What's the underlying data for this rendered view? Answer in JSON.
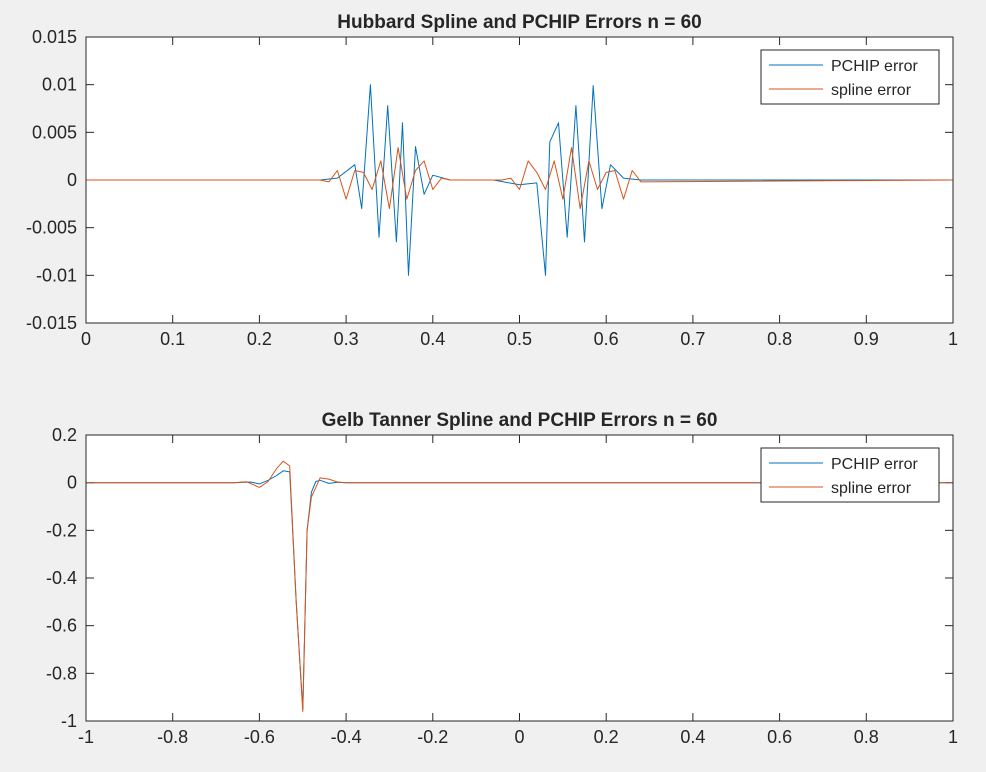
{
  "window": {
    "background": "#f0f0f0"
  },
  "chart_data": [
    {
      "type": "line",
      "title": "Hubbard Spline and PCHIP Errors n = 60",
      "xlabel": "",
      "ylabel": "",
      "xlim": [
        0,
        1
      ],
      "ylim": [
        -0.015,
        0.015
      ],
      "xticks": [
        0,
        0.1,
        0.2,
        0.3,
        0.4,
        0.5,
        0.6,
        0.7,
        0.8,
        0.9,
        1
      ],
      "xtick_labels": [
        "0",
        "0.1",
        "0.2",
        "0.3",
        "0.4",
        "0.5",
        "0.6",
        "0.7",
        "0.8",
        "0.9",
        "1"
      ],
      "yticks": [
        -0.015,
        -0.01,
        -0.005,
        0,
        0.005,
        0.01,
        0.015
      ],
      "ytick_labels": [
        "-0.015",
        "-0.01",
        "-0.005",
        "0",
        "0.005",
        "0.01",
        "0.015"
      ],
      "grid": false,
      "legend": {
        "placement": "top-right",
        "entries": [
          "PCHIP error",
          "spline error"
        ]
      },
      "series": [
        {
          "name": "PCHIP error",
          "color": "#0072BD",
          "x": [
            0,
            0.27,
            0.29,
            0.31,
            0.318,
            0.328,
            0.338,
            0.348,
            0.358,
            0.365,
            0.372,
            0.38,
            0.39,
            0.4,
            0.42,
            0.44,
            0.47,
            0.5,
            0.52,
            0.53,
            0.535,
            0.545,
            0.555,
            0.565,
            0.575,
            0.585,
            0.595,
            0.605,
            0.62,
            0.64,
            1
          ],
          "y": [
            0,
            0,
            0.0002,
            0.0016,
            -0.003,
            0.01,
            -0.006,
            0.0078,
            -0.0065,
            0.006,
            -0.01,
            0.0035,
            -0.0015,
            0.0005,
            0,
            0,
            0,
            -0.0005,
            -0.0003,
            -0.01,
            0.004,
            0.006,
            -0.006,
            0.0078,
            -0.0065,
            0.0099,
            -0.003,
            0.0016,
            0.0002,
            0,
            0
          ]
        },
        {
          "name": "spline error",
          "color": "#D95319",
          "x": [
            0,
            0.27,
            0.28,
            0.29,
            0.3,
            0.31,
            0.32,
            0.33,
            0.34,
            0.35,
            0.36,
            0.37,
            0.38,
            0.39,
            0.4,
            0.41,
            0.42,
            0.45,
            0.48,
            0.49,
            0.5,
            0.51,
            0.52,
            0.53,
            0.54,
            0.55,
            0.56,
            0.57,
            0.58,
            0.59,
            0.6,
            0.61,
            0.62,
            0.63,
            0.64,
            1
          ],
          "y": [
            0,
            0,
            -0.0002,
            0.001,
            -0.002,
            0.001,
            0.0008,
            -0.001,
            0.002,
            -0.003,
            0.0034,
            -0.002,
            0.001,
            0.002,
            -0.001,
            0.0002,
            0,
            0,
            0,
            0.0002,
            -0.001,
            0.002,
            0.0008,
            -0.001,
            0.002,
            -0.002,
            0.0034,
            -0.003,
            0.002,
            -0.001,
            0.0008,
            0.001,
            -0.002,
            0.001,
            -0.0002,
            0
          ]
        }
      ]
    },
    {
      "type": "line",
      "title": "Gelb Tanner Spline and PCHIP Errors n = 60",
      "xlabel": "",
      "ylabel": "",
      "xlim": [
        -1,
        1
      ],
      "ylim": [
        -1,
        0.2
      ],
      "xticks": [
        -1,
        -0.8,
        -0.6,
        -0.4,
        -0.2,
        0,
        0.2,
        0.4,
        0.6,
        0.8,
        1
      ],
      "xtick_labels": [
        "-1",
        "-0.8",
        "-0.6",
        "-0.4",
        "-0.2",
        "0",
        "0.2",
        "0.4",
        "0.6",
        "0.8",
        "1"
      ],
      "yticks": [
        -1,
        -0.8,
        -0.6,
        -0.4,
        -0.2,
        0,
        0.2
      ],
      "ytick_labels": [
        "-1",
        "-0.8",
        "-0.6",
        "-0.4",
        "-0.2",
        "0",
        "0.2"
      ],
      "grid": false,
      "legend": {
        "placement": "top-right",
        "entries": [
          "PCHIP error",
          "spline error"
        ]
      },
      "series": [
        {
          "name": "PCHIP error",
          "color": "#0072BD",
          "x": [
            -1,
            -0.66,
            -0.62,
            -0.6,
            -0.58,
            -0.56,
            -0.545,
            -0.53,
            -0.515,
            -0.5,
            -0.49,
            -0.48,
            -0.47,
            -0.46,
            -0.44,
            -0.42,
            -0.4,
            1
          ],
          "y": [
            0,
            0,
            0.003,
            -0.005,
            0.01,
            0.03,
            0.05,
            0.045,
            -0.5,
            -0.95,
            -0.2,
            -0.04,
            0.005,
            0.01,
            -0.003,
            0.002,
            0,
            0
          ]
        },
        {
          "name": "spline error",
          "color": "#D95319",
          "x": [
            -1,
            -0.66,
            -0.63,
            -0.6,
            -0.58,
            -0.56,
            -0.545,
            -0.53,
            -0.515,
            -0.5,
            -0.49,
            -0.48,
            -0.47,
            -0.46,
            -0.44,
            -0.42,
            -0.4,
            1
          ],
          "y": [
            0,
            0,
            0.004,
            -0.02,
            0.005,
            0.06,
            0.09,
            0.07,
            -0.5,
            -0.96,
            -0.2,
            -0.06,
            -0.02,
            0.02,
            0.015,
            0.003,
            0,
            0
          ]
        }
      ]
    }
  ]
}
